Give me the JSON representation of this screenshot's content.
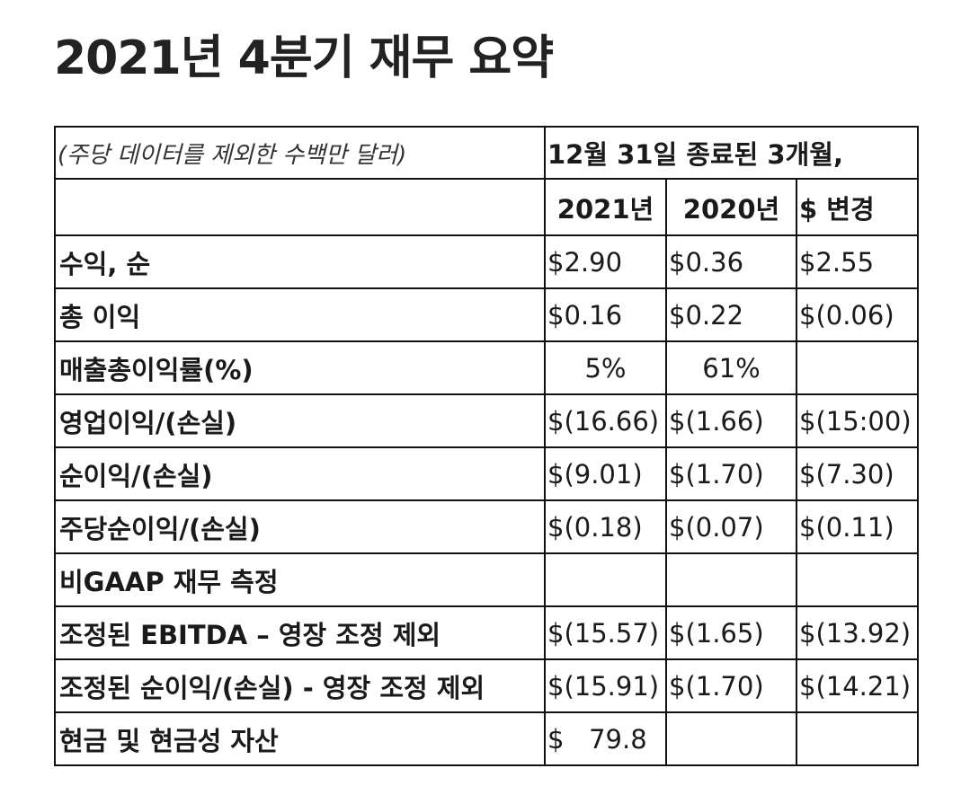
{
  "title": "2021년 4분기 재무 요약",
  "table": {
    "note": "(주당 데이터를 제외한 수백만 달러)",
    "period": "12월 31일 종료된 3개월,",
    "columns": [
      "2021년",
      "2020년",
      "$ 변경"
    ],
    "rows": [
      {
        "label": "수익, 순",
        "v2021": "$2.90",
        "v2020": "$0.36",
        "change": "$2.55"
      },
      {
        "label": "총 이익",
        "v2021": "$0.16",
        "v2020": "$0.22",
        "change": "$(0.06)"
      },
      {
        "label": "매출총이익률(%)",
        "v2021": "5%",
        "v2020": "61%",
        "change": ""
      },
      {
        "label": "영업이익/(손실)",
        "v2021": "$(16.66)",
        "v2020": "$(1.66)",
        "change": "$(15:00)"
      },
      {
        "label": "순이익/(손실)",
        "v2021": "$(9.01)",
        "v2020": "$(1.70)",
        "change": "$(7.30)"
      },
      {
        "label": "주당순이익/(손실)",
        "v2021": "$(0.18)",
        "v2020": "$(0.07)",
        "change": "$(0.11)"
      },
      {
        "label": "비GAAP 재무 측정",
        "v2021": "",
        "v2020": "",
        "change": ""
      },
      {
        "label": "조정된 EBITDA – 영장 조정 제외",
        "v2021": "$(15.57)",
        "v2020": "$(1.65)",
        "change": "$(13.92)"
      },
      {
        "label": "조정된 순이익/(손실) - 영장 조정 제외",
        "v2021": "$(15.91)",
        "v2020": "$(1.70)",
        "change": "$(14.21)"
      },
      {
        "label": "현금 및 현금성 자산",
        "v2021": "$   79.8",
        "v2020": "",
        "change": ""
      }
    ]
  }
}
